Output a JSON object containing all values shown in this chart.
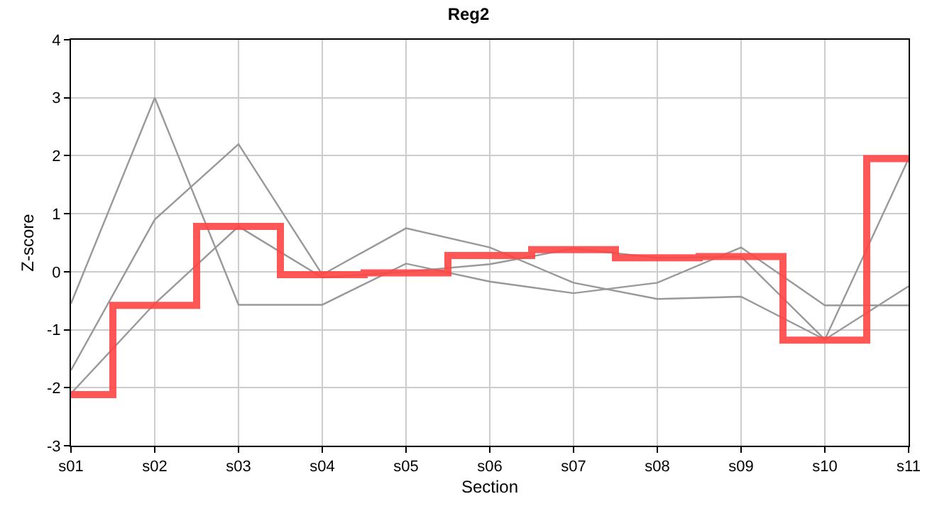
{
  "chart_data": {
    "type": "line",
    "title": "Reg2",
    "xlabel": "Section",
    "ylabel": "Z-score",
    "categories": [
      "s01",
      "s02",
      "s03",
      "s04",
      "s05",
      "s06",
      "s07",
      "s08",
      "s09",
      "s10",
      "s11"
    ],
    "ylim": [
      -3,
      4
    ],
    "yticks": [
      -3,
      -2,
      -1,
      0,
      1,
      2,
      3,
      4
    ],
    "grid": true,
    "marker": "none",
    "series": [
      {
        "color": "#999999",
        "values": [
          -0.55,
          3.0,
          -0.57,
          -0.57,
          0.14,
          -0.17,
          -0.37,
          -0.19,
          0.42,
          -0.58,
          -0.58
        ]
      },
      {
        "color": "#999999",
        "values": [
          -1.7,
          0.9,
          2.2,
          -0.05,
          0.75,
          0.42,
          -0.19,
          -0.47,
          -0.43,
          -1.17,
          -0.25
        ]
      },
      {
        "color": "#999999",
        "values": [
          -2.1,
          -0.55,
          0.78,
          -0.1,
          0.0,
          0.13,
          0.4,
          0.24,
          0.26,
          -1.17,
          1.95
        ]
      },
      {
        "type": "step",
        "color": "#ff4444",
        "values": [
          -2.12,
          -0.58,
          0.78,
          -0.05,
          -0.02,
          0.28,
          0.38,
          0.24,
          0.26,
          -1.18,
          1.95
        ]
      }
    ]
  }
}
